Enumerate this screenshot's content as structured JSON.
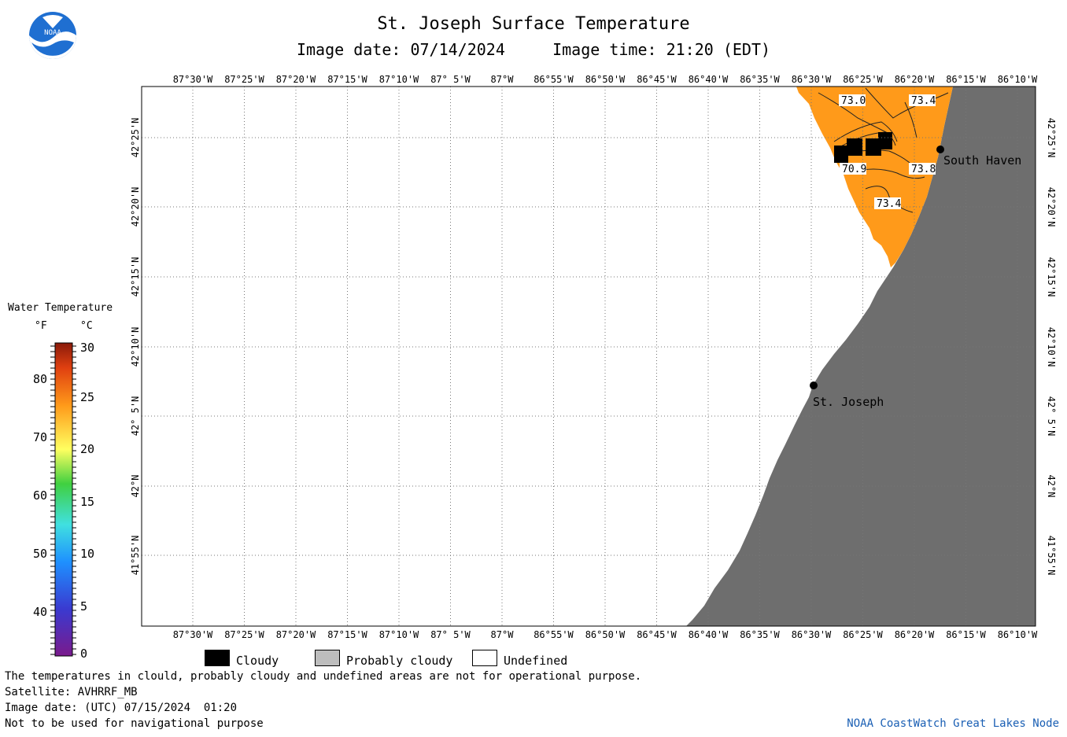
{
  "header": {
    "title": "St. Joseph Surface Temperature",
    "subtitle_date_label": "Image date: 07/14/2024",
    "subtitle_time_label": "Image time: 21:20 (EDT)",
    "logo_text": "NOAA"
  },
  "map": {
    "lon_labels": [
      "87°30'W",
      "87°25'W",
      "87°20'W",
      "87°15'W",
      "87°10'W",
      "87° 5'W",
      "87°W",
      "86°55'W",
      "86°50'W",
      "86°45'W",
      "86°40'W",
      "86°35'W",
      "86°30'W",
      "86°25'W",
      "86°20'W",
      "86°15'W",
      "86°10'W"
    ],
    "lat_labels": [
      "42°25'N",
      "42°20'N",
      "42°15'N",
      "42°10'N",
      "42° 5'N",
      "42°N",
      "41°55'N"
    ],
    "cities": [
      {
        "name": "South Haven"
      },
      {
        "name": "St. Joseph"
      }
    ],
    "contour_labels": [
      "73.0",
      "73.4",
      "70.9",
      "73.8",
      "73.4"
    ],
    "colors": {
      "land": "#6e6e6e",
      "water_warm": "#ff9a1a",
      "cloud": "#000000",
      "undefined": "#ffffff"
    }
  },
  "colorbar": {
    "title": "Water Temperature",
    "unit_f": "°F",
    "unit_c": "°C",
    "f_ticks": [
      "80",
      "70",
      "60",
      "50",
      "40"
    ],
    "c_ticks": [
      "30",
      "25",
      "20",
      "15",
      "10",
      "5",
      "0"
    ]
  },
  "legend": {
    "cloudy": "Cloudy",
    "probably_cloudy": "Probably cloudy",
    "undefined": "Undefined"
  },
  "footer": {
    "disclaimer": "The temperatures in clould, probably cloudy and undefined areas are not for operational purpose.",
    "satellite": "Satellite: AVHRRF_MB",
    "utc_date": "Image date: (UTC) 07/15/2024  01:20",
    "nav_warning": "Not to be used for navigational purpose",
    "credit": "NOAA CoastWatch Great Lakes Node"
  }
}
